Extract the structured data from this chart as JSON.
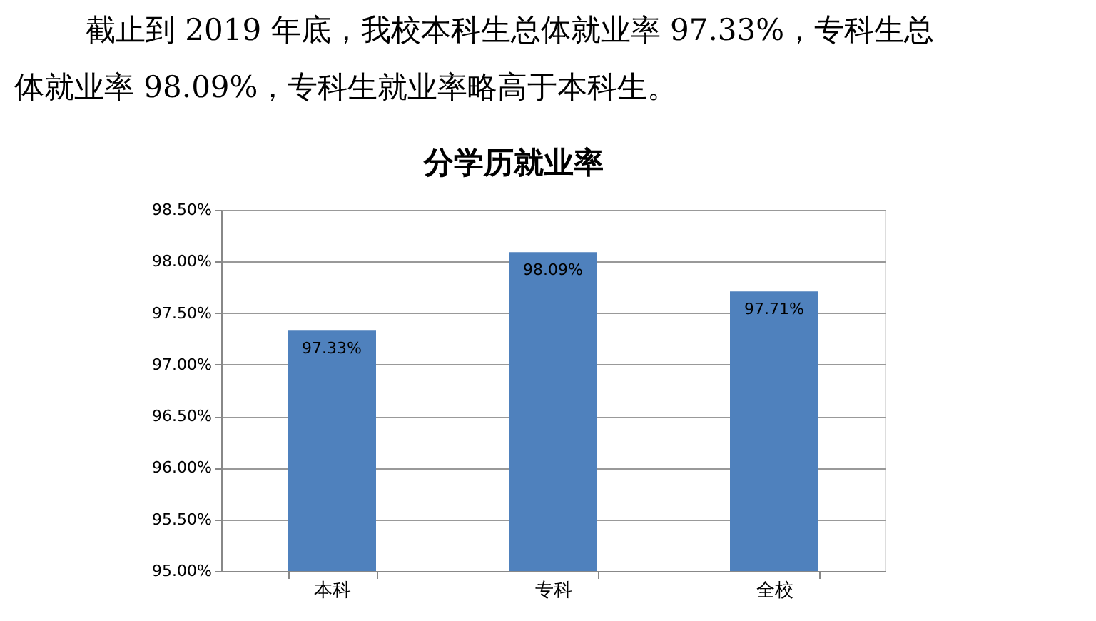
{
  "chart_data": {
    "type": "bar",
    "title": "分学历就业率",
    "annotations": [
      "截止到 2019 年底，我校本科生总体就业率 97.33%，专科生总",
      "体就业率 98.09%，专科生就业率略高于本科生。"
    ],
    "categories": [
      "本科",
      "专科",
      "全校"
    ],
    "values": [
      97.33,
      98.09,
      97.71
    ],
    "color": "#4f81bd",
    "value_labels": [
      "97.33%",
      "98.09%",
      "97.71%"
    ],
    "ylim": [
      95,
      98.5
    ],
    "yticks": [
      {
        "value": 95,
        "label": "95.00%"
      },
      {
        "value": 95.5,
        "label": "95.50%"
      },
      {
        "value": 96,
        "label": "96.00%"
      },
      {
        "value": 96.5,
        "label": "96.50%"
      },
      {
        "value": 97,
        "label": "97.00%"
      },
      {
        "value": 97.5,
        "label": "97.50%"
      },
      {
        "value": 98,
        "label": "98.00%"
      },
      {
        "value": 98.5,
        "label": "98.50%"
      }
    ],
    "grid": "y"
  }
}
